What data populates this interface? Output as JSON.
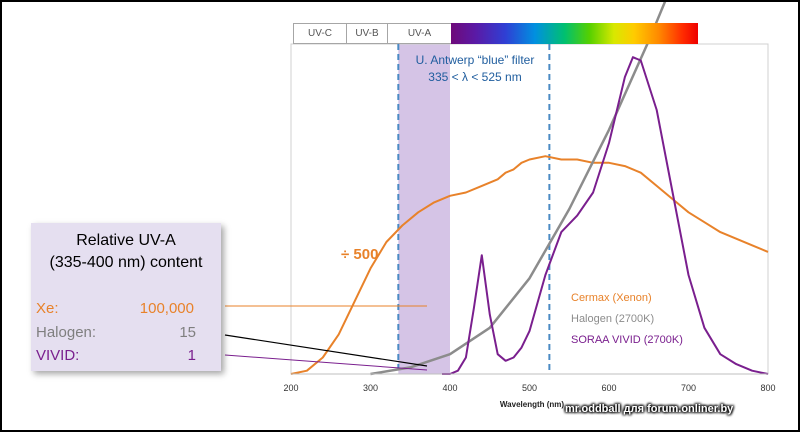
{
  "chart_data": {
    "type": "line",
    "xlabel": "Wavelength (nm)",
    "ylabel": "",
    "xlim": [
      200,
      800
    ],
    "ylim": [
      0,
      100
    ],
    "x_ticks": [
      "200",
      "300",
      "400",
      "500",
      "600",
      "700",
      "800"
    ],
    "uv_bands": [
      {
        "label": "UV-C",
        "from": 200,
        "to": 280
      },
      {
        "label": "UV-B",
        "from": 280,
        "to": 315
      },
      {
        "label": "UV-A",
        "from": 315,
        "to": 400
      }
    ],
    "filter": {
      "title": "U. Antwerp “blue” filter",
      "range": "335 < λ < 525 nm",
      "from": 335,
      "to": 525
    },
    "shaded_region": {
      "from": 335,
      "to": 400
    },
    "scale_note": "÷ 500",
    "series": [
      {
        "name": "Cermax (Xenon)",
        "color": "#e8822a",
        "x": [
          200,
          220,
          240,
          260,
          280,
          300,
          320,
          340,
          360,
          380,
          400,
          420,
          440,
          460,
          470,
          480,
          490,
          500,
          520,
          540,
          560,
          580,
          600,
          620,
          640,
          660,
          680,
          700,
          720,
          740,
          760,
          780,
          800
        ],
        "y": [
          0,
          1,
          5,
          12,
          22,
          32,
          40,
          45,
          49,
          52,
          54,
          55,
          57,
          59,
          61,
          62,
          64,
          65,
          66,
          65,
          65,
          64,
          64,
          63,
          61,
          57,
          53,
          49,
          46,
          43,
          41,
          39,
          37
        ]
      },
      {
        "name": "Halogen (2700K)",
        "color": "#8c8c8c",
        "x": [
          300,
          350,
          400,
          450,
          500,
          550,
          600,
          650,
          700
        ],
        "y": [
          0,
          2,
          6,
          14,
          29,
          50,
          74,
          101,
          130
        ]
      },
      {
        "name": "SORAA VIVID (2700K)",
        "color": "#7a1f8e",
        "x": [
          390,
          400,
          410,
          420,
          430,
          440,
          450,
          460,
          470,
          480,
          490,
          500,
          520,
          540,
          560,
          580,
          600,
          620,
          630,
          640,
          660,
          680,
          700,
          720,
          740,
          760,
          780,
          800
        ],
        "y": [
          0,
          0,
          1,
          5,
          20,
          36,
          18,
          6,
          4,
          5,
          8,
          13,
          30,
          43,
          48,
          55,
          70,
          90,
          96,
          95,
          80,
          55,
          30,
          14,
          6,
          3,
          1,
          0
        ]
      }
    ]
  },
  "legend": {
    "title_line1": "Relative UV-A",
    "title_line2": "(335-400 nm) content",
    "rows": [
      {
        "name": "Xe:",
        "value": "100,000",
        "color": "#e8822a"
      },
      {
        "name": "Halogen:",
        "value": "15",
        "color": "#7f7f7f"
      },
      {
        "name": "VIVID:",
        "value": "1",
        "color": "#7a1f8e"
      }
    ]
  },
  "watermark": "mr.oddball для forum.onliner.by"
}
